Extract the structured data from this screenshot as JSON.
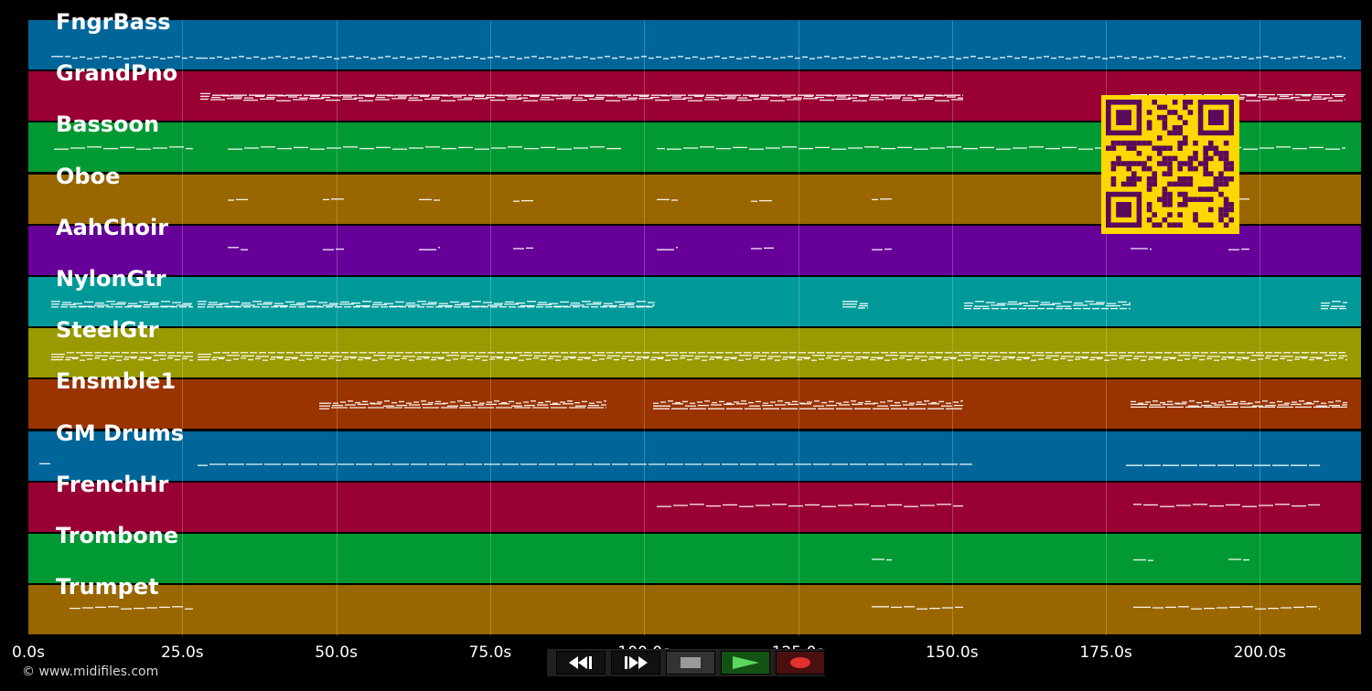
{
  "tracks": [
    {
      "name": "FngrBass",
      "color": "#006699"
    },
    {
      "name": "GrandPno",
      "color": "#990033"
    },
    {
      "name": "Bassoon",
      "color": "#009933"
    },
    {
      "name": "Oboe",
      "color": "#996600"
    },
    {
      "name": "AahChoir",
      "color": "#660099"
    },
    {
      "name": "NylonGtr",
      "color": "#009999"
    },
    {
      "name": "SteelGtr",
      "color": "#999900"
    },
    {
      "name": "Ensmble1",
      "color": "#993300"
    },
    {
      "name": "GM Drums",
      "color": "#006699"
    },
    {
      "name": "FrenchHr",
      "color": "#990033"
    },
    {
      "name": "Trombone",
      "color": "#009933"
    },
    {
      "name": "Trumpet",
      "color": "#996600"
    }
  ],
  "timeline": {
    "ticks": [
      "0.0s",
      "25.0s",
      "50.0s",
      "75.0s",
      "100.0s",
      "125.0s",
      "150.0s",
      "175.0s",
      "200.0s"
    ]
  },
  "copyright": "© www.midifiles.com",
  "transport": {
    "rewind": "rewind-icon",
    "fast_forward": "fast-forward-icon",
    "stop": "stop-icon",
    "play": "play-icon",
    "record": "record-icon"
  },
  "qr_code": "qr-code",
  "accent_colors": {
    "play": "#5cd65c",
    "record": "#e03030",
    "qr": "#ffd700"
  }
}
